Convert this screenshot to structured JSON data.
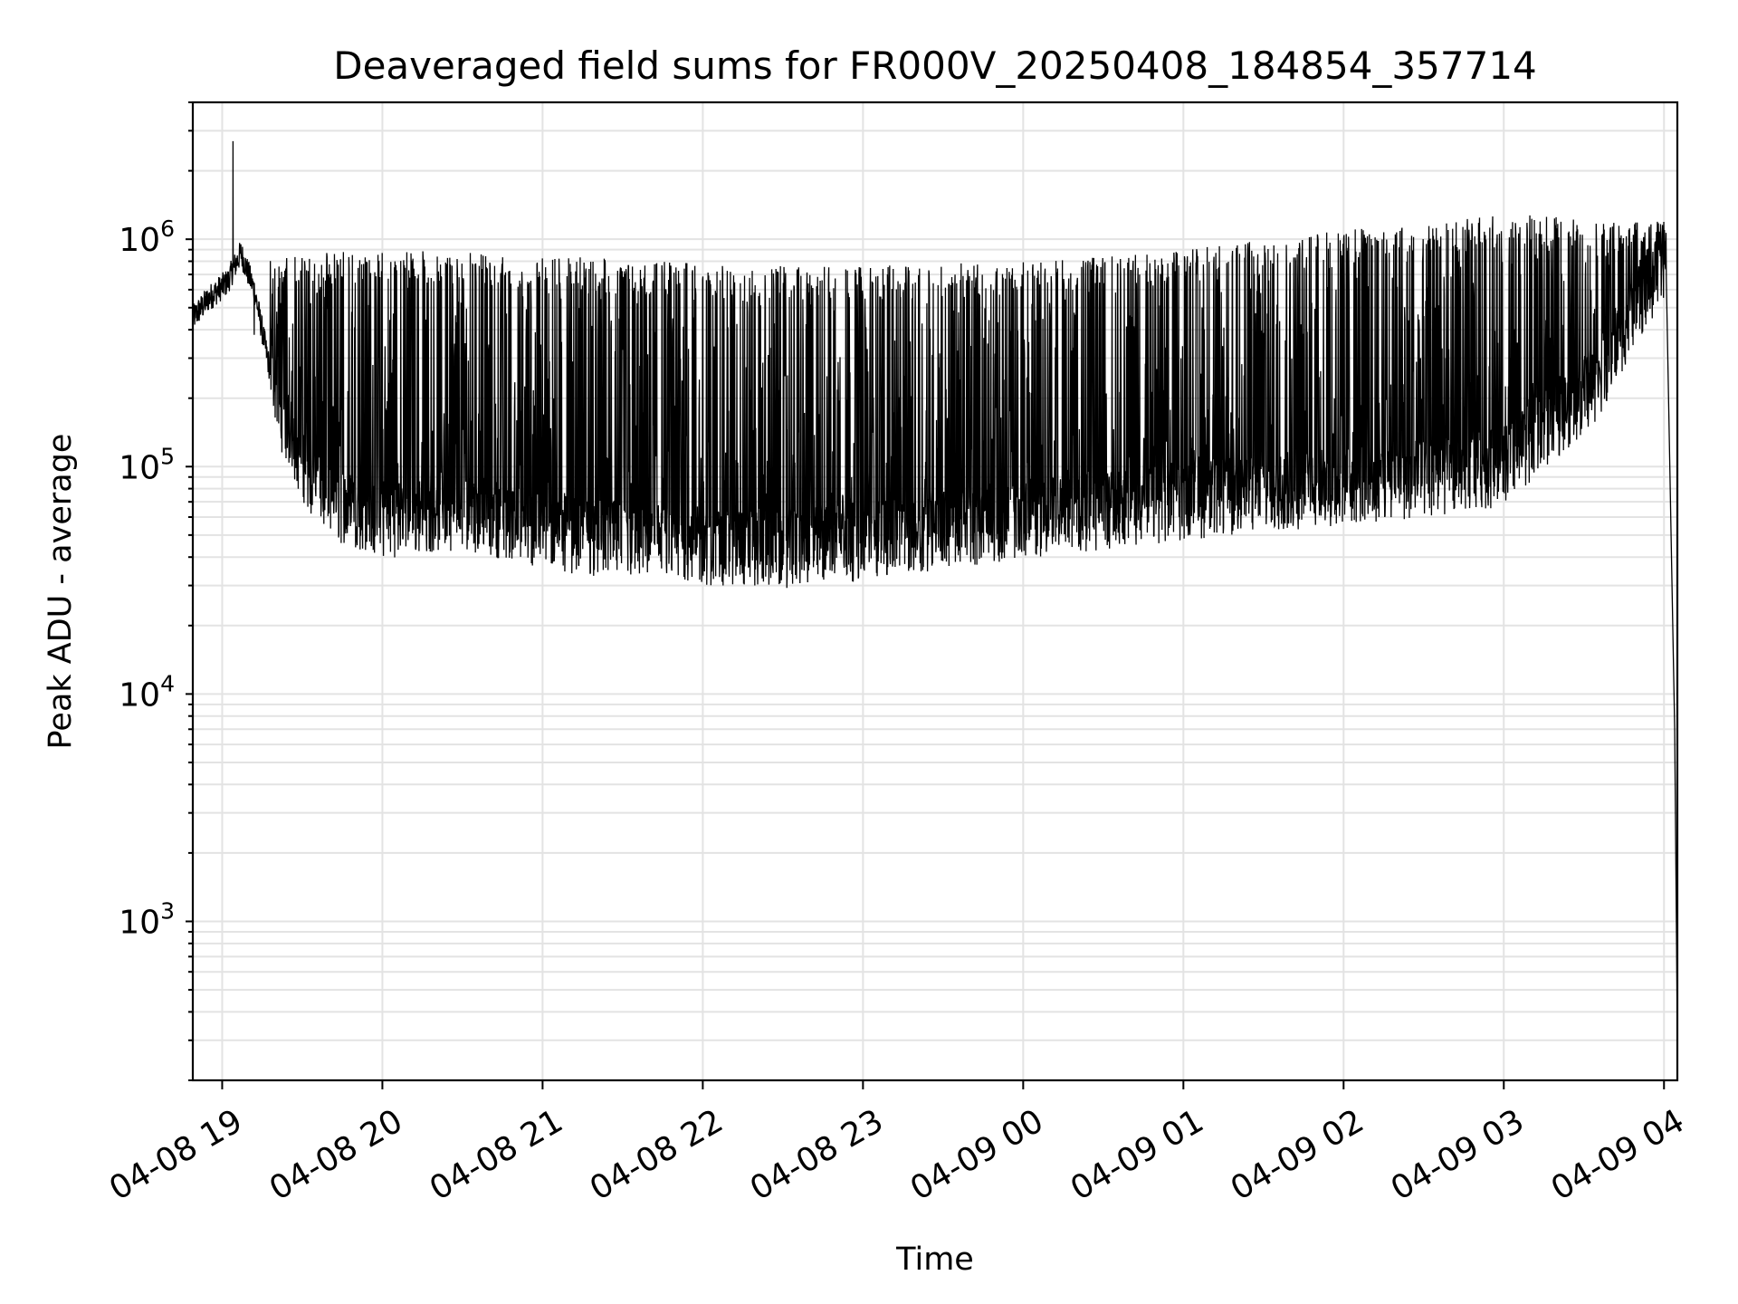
{
  "chart_data": {
    "type": "line",
    "title": "Deaveraged field sums for FR000V_20250408_184854_357714",
    "xlabel": "Time",
    "ylabel": "Peak ADU - average",
    "yscale": "log",
    "ylim": [
      200,
      4000000
    ],
    "xlim": [
      "04-08 18:49",
      "04-09 04:05"
    ],
    "grid": true,
    "line_color": "#000000",
    "x_ticks": [
      {
        "t": "04-08 19:00",
        "label": "04-08 19"
      },
      {
        "t": "04-08 20:00",
        "label": "04-08 20"
      },
      {
        "t": "04-08 21:00",
        "label": "04-08 21"
      },
      {
        "t": "04-08 22:00",
        "label": "04-08 22"
      },
      {
        "t": "04-08 23:00",
        "label": "04-08 23"
      },
      {
        "t": "04-09 00:00",
        "label": "04-09 00"
      },
      {
        "t": "04-09 01:00",
        "label": "04-09 01"
      },
      {
        "t": "04-09 02:00",
        "label": "04-09 02"
      },
      {
        "t": "04-09 03:00",
        "label": "04-09 03"
      },
      {
        "t": "04-09 04:00",
        "label": "04-09 04"
      }
    ],
    "y_ticks": [
      {
        "value": 1000,
        "base": "10",
        "exp": "3"
      },
      {
        "value": 10000,
        "base": "10",
        "exp": "4"
      },
      {
        "value": 100000,
        "base": "10",
        "exp": "5"
      },
      {
        "value": 1000000,
        "base": "10",
        "exp": "6"
      }
    ],
    "series": [
      {
        "baseline_envelope": [
          [
            "04-08 18:49",
            450000
          ],
          [
            "04-08 18:55",
            550000
          ],
          [
            "04-08 19:02",
            650000
          ],
          [
            "04-08 19:07",
            870000
          ],
          [
            "04-08 19:12",
            600000
          ],
          [
            "04-08 19:17",
            300000
          ],
          [
            "04-08 19:22",
            150000
          ],
          [
            "04-08 19:30",
            90000
          ],
          [
            "04-08 19:40",
            60000
          ],
          [
            "04-08 20:00",
            50000
          ],
          [
            "04-08 20:30",
            55000
          ],
          [
            "04-08 21:00",
            45000
          ],
          [
            "04-08 21:30",
            40000
          ],
          [
            "04-08 22:00",
            38000
          ],
          [
            "04-08 22:30",
            37000
          ],
          [
            "04-08 23:00",
            40000
          ],
          [
            "04-08 23:30",
            45000
          ],
          [
            "04-09 00:00",
            50000
          ],
          [
            "04-09 00:30",
            55000
          ],
          [
            "04-09 01:00",
            60000
          ],
          [
            "04-09 01:30",
            65000
          ],
          [
            "04-09 02:00",
            70000
          ],
          [
            "04-09 02:30",
            75000
          ],
          [
            "04-09 03:00",
            85000
          ],
          [
            "04-09 03:35",
            200000
          ],
          [
            "04-09 03:50",
            450000
          ],
          [
            "04-09 04:00",
            650000
          ]
        ],
        "peak_envelope": [
          [
            "04-08 19:20",
            850000
          ],
          [
            "04-08 20:00",
            900000
          ],
          [
            "04-08 21:00",
            850000
          ],
          [
            "04-08 22:00",
            780000
          ],
          [
            "04-08 23:00",
            760000
          ],
          [
            "04-09 00:00",
            800000
          ],
          [
            "04-09 01:00",
            900000
          ],
          [
            "04-09 02:00",
            1100000
          ],
          [
            "04-09 03:00",
            1300000
          ],
          [
            "04-09 03:50",
            1200000
          ]
        ],
        "notable_points": [
          [
            "04-08 19:04",
            2700000
          ],
          [
            "04-08 19:12",
            380000
          ],
          [
            "04-09 04:02",
            130000
          ],
          [
            "04-09 04:03",
            30000
          ],
          [
            "04-09 04:04",
            7000
          ],
          [
            "04-09 04:05",
            320
          ]
        ]
      }
    ]
  }
}
